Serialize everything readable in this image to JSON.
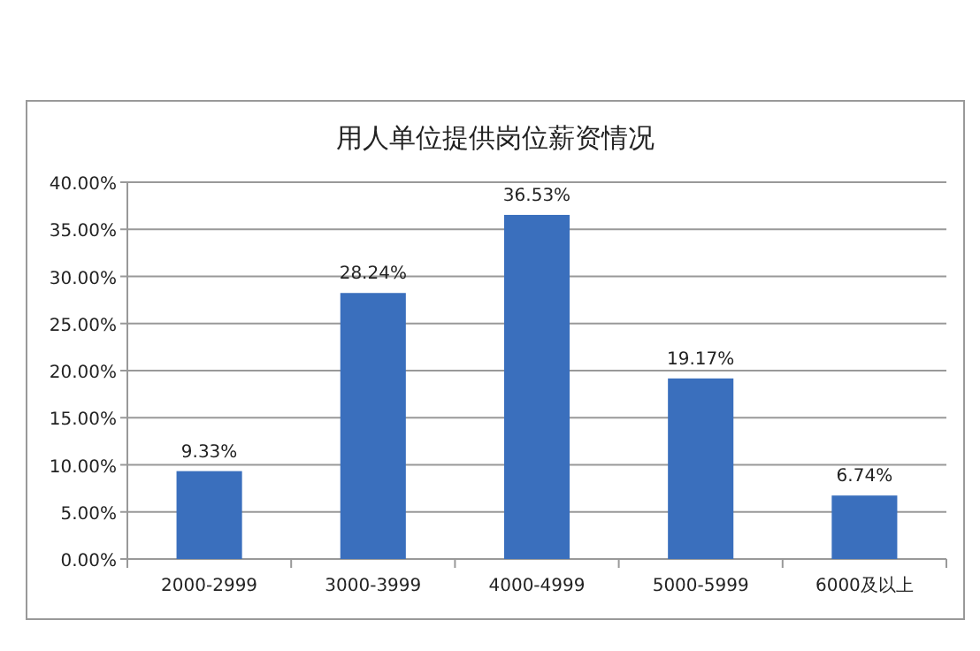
{
  "chart_data": {
    "type": "bar",
    "title": "用人单位提供岗位薪资情况",
    "categories": [
      "2000-2999",
      "3000-3999",
      "4000-4999",
      "5000-5999",
      "6000及以上"
    ],
    "values": [
      9.33,
      28.24,
      36.53,
      19.17,
      6.74
    ],
    "value_labels": [
      "9.33%",
      "28.24%",
      "36.53%",
      "19.17%",
      "6.74%"
    ],
    "color": "#3a6fbd",
    "ylim": [
      0,
      40
    ],
    "yticks": [
      {
        "value": 0,
        "label": "0.00%"
      },
      {
        "value": 5,
        "label": "5.00%"
      },
      {
        "value": 10,
        "label": "10.00%"
      },
      {
        "value": 15,
        "label": "15.00%"
      },
      {
        "value": 20,
        "label": "20.00%"
      },
      {
        "value": 25,
        "label": "25.00%"
      },
      {
        "value": 30,
        "label": "30.00%"
      },
      {
        "value": 35,
        "label": "35.00%"
      },
      {
        "value": 40,
        "label": "40.00%"
      }
    ],
    "grid": "y"
  }
}
